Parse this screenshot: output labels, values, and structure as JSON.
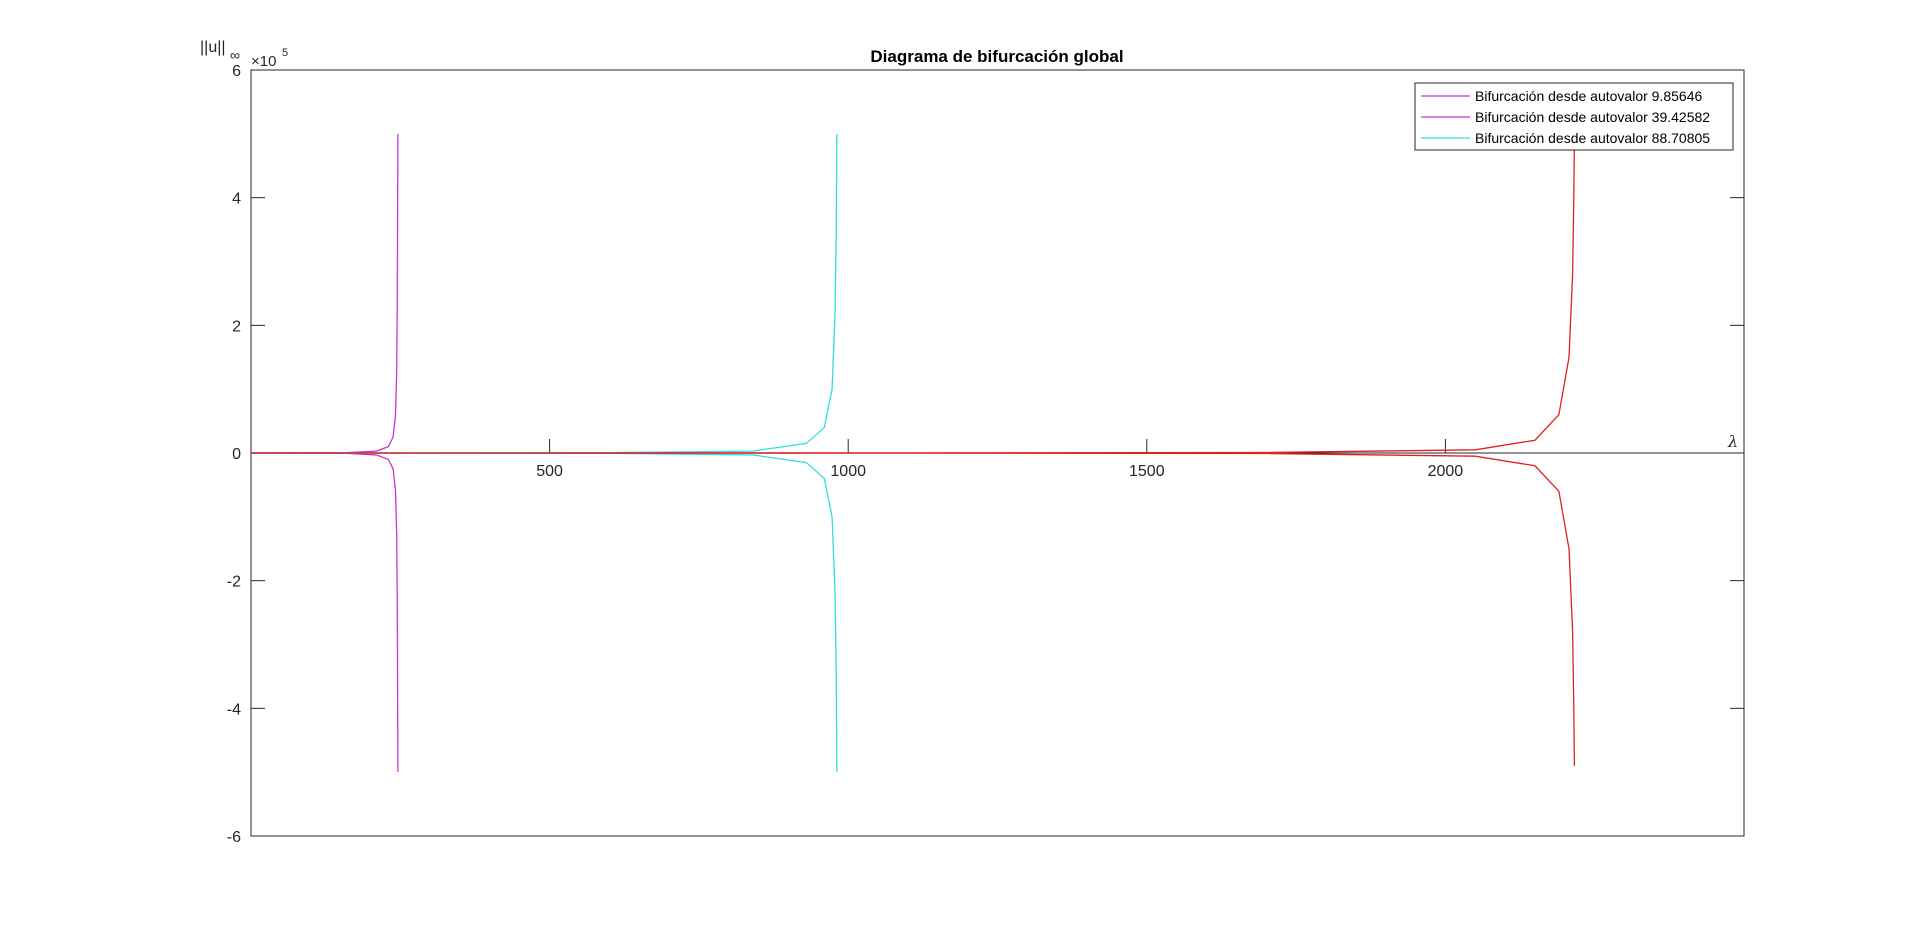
{
  "chart_data": {
    "type": "line",
    "title": "Diagrama de bifurcación global",
    "ylabel": "||u||",
    "ylabel_subscript": "∞",
    "y_multiplier_base": "×10",
    "y_multiplier_exponent": "5",
    "xlabel": "λ",
    "xlim": [
      0,
      2500
    ],
    "ylim": [
      -600000,
      600000
    ],
    "x_ticks": [
      500,
      1000,
      1500,
      2000
    ],
    "x_tick_labels": [
      "500",
      "1000",
      "1500",
      "2000"
    ],
    "y_ticks": [
      -600000,
      -400000,
      -200000,
      0,
      200000,
      400000,
      600000
    ],
    "y_tick_labels": [
      "-6",
      "-4",
      "-2",
      "0",
      "2",
      "4",
      "6"
    ],
    "grid": false,
    "legend_position": "top-right",
    "series": [
      {
        "name": "Bifurcación desde autovalor 9.85646",
        "color": "#cc33cc",
        "x": [
          0,
          160,
          210,
          230,
          238,
          242,
          244,
          245,
          245.5,
          246
        ],
        "y": [
          0,
          500,
          3000,
          10000,
          25000,
          60000,
          130000,
          250000,
          380000,
          500000
        ],
        "mirror": true
      },
      {
        "name": "Bifurcación desde autovalor 39.42582",
        "color": "#cc33cc",
        "x": [
          0,
          30,
          60,
          80
        ],
        "y": [
          0,
          0,
          0,
          0
        ],
        "mirror": false
      },
      {
        "name": "Bifurcación desde autovalor 88.70805",
        "color": "#33dddd",
        "x": [
          0,
          80,
          600,
          840,
          930,
          960,
          973,
          978,
          980,
          981
        ],
        "y": [
          0,
          0,
          500,
          3000,
          15000,
          40000,
          100000,
          220000,
          350000,
          500000
        ],
        "mirror": true
      },
      {
        "name": "",
        "color": "#dd2222",
        "x": [
          0,
          900,
          1700,
          2050,
          2150,
          2190,
          2207,
          2213,
          2215,
          2216
        ],
        "y": [
          0,
          100,
          800,
          5000,
          20000,
          60000,
          150000,
          280000,
          400000,
          490000
        ],
        "mirror": true
      }
    ]
  }
}
